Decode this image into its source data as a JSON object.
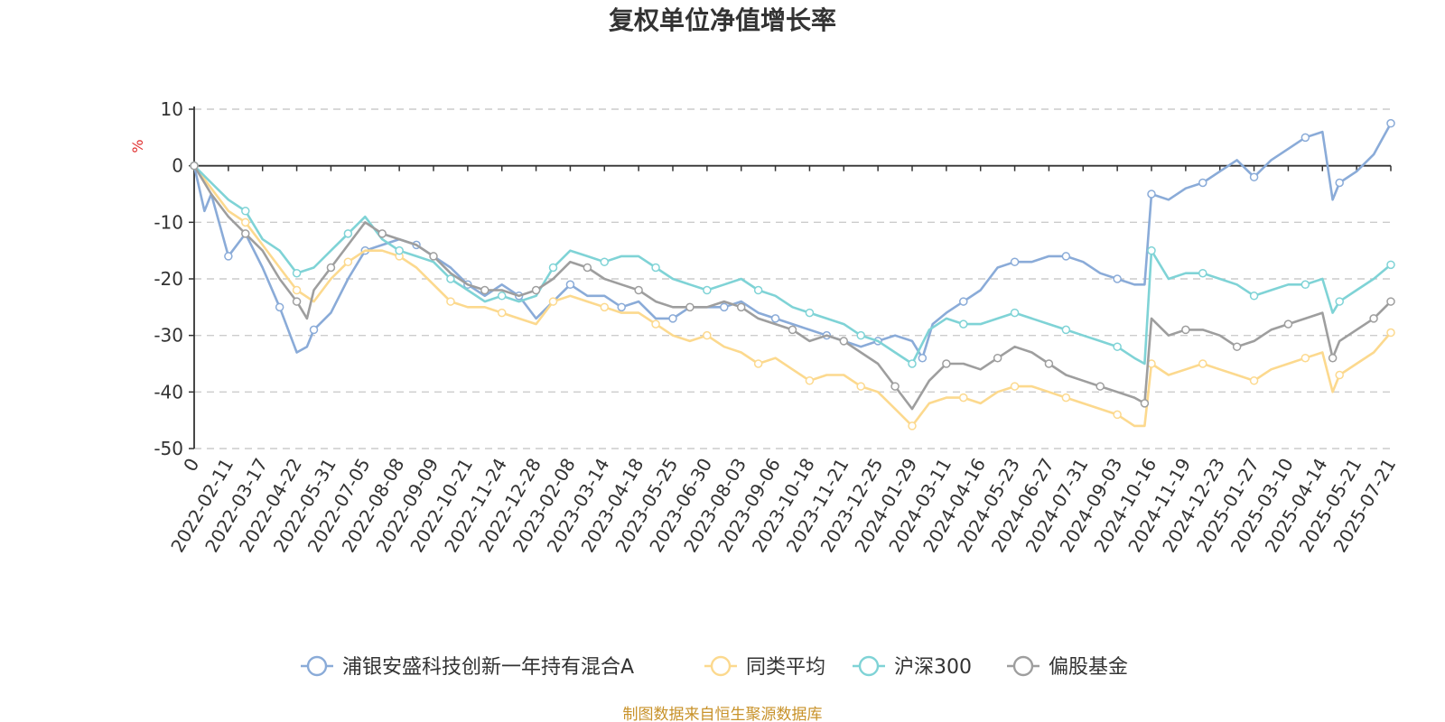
{
  "colors": {
    "text": "#333333",
    "grid": "#cccccc",
    "unit": "#e03030",
    "source": "#c8922a"
  },
  "chart_data": {
    "type": "line",
    "title": "复权单位净值增长率",
    "ylabel": "%",
    "ylim": [
      -50,
      10
    ],
    "yticks": [
      10,
      0,
      -10,
      -20,
      -30,
      -40,
      -50
    ],
    "grid": true,
    "legend_position": "bottom",
    "xticks": [
      "0",
      "2022-02-11",
      "2022-03-17",
      "2022-04-22",
      "2022-05-31",
      "2022-07-05",
      "2022-08-08",
      "2022-09-09",
      "2022-10-21",
      "2022-11-24",
      "2022-12-28",
      "2023-02-08",
      "2023-03-14",
      "2023-04-18",
      "2023-05-25",
      "2023-06-30",
      "2023-08-03",
      "2023-09-06",
      "2023-10-18",
      "2023-11-21",
      "2023-12-25",
      "2024-01-29",
      "2024-03-11",
      "2024-04-16",
      "2024-05-23",
      "2024-06-27",
      "2024-07-31",
      "2024-09-03",
      "2024-10-16",
      "2024-11-19",
      "2024-12-23",
      "2025-01-27",
      "2025-03-10",
      "2025-04-14",
      "2025-05-21",
      "2025-07-21"
    ],
    "x_positions": [
      0,
      1,
      2,
      3,
      4,
      5,
      6,
      7,
      8,
      9,
      10,
      11,
      12,
      13,
      14,
      15,
      16,
      17,
      18,
      19,
      20,
      21,
      22,
      23,
      24,
      25,
      26,
      27,
      28,
      29,
      30,
      31,
      32,
      33,
      34,
      35
    ],
    "series": [
      {
        "name": "浦银安盛科技创新一年持有混合A",
        "color": "#8aabd8",
        "x": [
          0,
          0.3,
          0.5,
          1,
          1.5,
          2,
          2.5,
          3,
          3.3,
          3.5,
          4,
          4.5,
          5,
          5.5,
          6,
          6.5,
          7,
          7.5,
          8,
          8.5,
          9,
          9.5,
          10,
          10.5,
          11,
          11.5,
          12,
          12.5,
          13,
          13.5,
          14,
          14.5,
          15,
          15.5,
          16,
          16.5,
          17,
          17.5,
          18,
          18.5,
          19,
          19.5,
          20,
          20.5,
          21,
          21.3,
          21.6,
          22,
          22.5,
          23,
          23.5,
          24,
          24.5,
          25,
          25.5,
          26,
          26.5,
          27,
          27.5,
          27.8,
          28,
          28.5,
          29,
          29.5,
          30,
          30.5,
          31,
          31.5,
          32,
          32.5,
          33,
          33.3,
          33.5,
          34,
          34.5,
          35
        ],
        "y": [
          0,
          -8,
          -5,
          -16,
          -12,
          -18,
          -25,
          -33,
          -32,
          -29,
          -26,
          -20,
          -15,
          -14,
          -13,
          -14,
          -16,
          -18,
          -21,
          -23,
          -21,
          -23,
          -27,
          -24,
          -21,
          -23,
          -23,
          -25,
          -24,
          -27,
          -27,
          -25,
          -25,
          -25,
          -24,
          -26,
          -27,
          -28,
          -29,
          -30,
          -31,
          -32,
          -31,
          -30,
          -31,
          -34,
          -28,
          -26,
          -24,
          -22,
          -18,
          -17,
          -17,
          -16,
          -16,
          -17,
          -19,
          -20,
          -21,
          -21,
          -5,
          -6,
          -4,
          -3,
          -1,
          1,
          -2,
          1,
          3,
          5,
          6,
          -6,
          -3,
          -1,
          2,
          7.5
        ]
      },
      {
        "name": "同类平均",
        "color": "#fcd98e",
        "x": [
          0,
          0.5,
          1,
          1.5,
          2,
          2.5,
          3,
          3.5,
          4,
          4.5,
          5,
          5.5,
          6,
          6.5,
          7,
          7.5,
          8,
          8.5,
          9,
          9.5,
          10,
          10.5,
          11,
          11.5,
          12,
          12.5,
          13,
          13.5,
          14,
          14.5,
          15,
          15.5,
          16,
          16.5,
          17,
          17.5,
          18,
          18.5,
          19,
          19.5,
          20,
          20.5,
          21,
          21.5,
          22,
          22.5,
          23,
          23.5,
          24,
          24.5,
          25,
          25.5,
          26,
          26.5,
          27,
          27.5,
          27.8,
          28,
          28.5,
          29,
          29.5,
          30,
          30.5,
          31,
          31.5,
          32,
          32.5,
          33,
          33.3,
          33.5,
          34,
          34.5,
          35
        ],
        "y": [
          0,
          -4,
          -8,
          -10,
          -14,
          -18,
          -22,
          -24,
          -20,
          -17,
          -15,
          -15,
          -16,
          -18,
          -21,
          -24,
          -25,
          -25,
          -26,
          -27,
          -28,
          -24,
          -23,
          -24,
          -25,
          -26,
          -26,
          -28,
          -30,
          -31,
          -30,
          -32,
          -33,
          -35,
          -34,
          -36,
          -38,
          -37,
          -37,
          -39,
          -40,
          -43,
          -46,
          -42,
          -41,
          -41,
          -42,
          -40,
          -39,
          -39,
          -40,
          -41,
          -42,
          -43,
          -44,
          -46,
          -46,
          -35,
          -37,
          -36,
          -35,
          -36,
          -37,
          -38,
          -36,
          -35,
          -34,
          -33,
          -40,
          -37,
          -35,
          -33,
          -29.5
        ]
      },
      {
        "name": "沪深300",
        "color": "#7fd3d6",
        "x": [
          0,
          0.5,
          1,
          1.5,
          2,
          2.5,
          3,
          3.5,
          4,
          4.5,
          5,
          5.5,
          6,
          6.5,
          7,
          7.5,
          8,
          8.5,
          9,
          9.5,
          10,
          10.5,
          11,
          11.5,
          12,
          12.5,
          13,
          13.5,
          14,
          14.5,
          15,
          15.5,
          16,
          16.5,
          17,
          17.5,
          18,
          18.5,
          19,
          19.5,
          20,
          20.5,
          21,
          21.5,
          22,
          22.5,
          23,
          23.5,
          24,
          24.5,
          25,
          25.5,
          26,
          26.5,
          27,
          27.5,
          27.8,
          28,
          28.5,
          29,
          29.5,
          30,
          30.5,
          31,
          31.5,
          32,
          32.5,
          33,
          33.3,
          33.5,
          34,
          34.5,
          35
        ],
        "y": [
          0,
          -3,
          -6,
          -8,
          -13,
          -15,
          -19,
          -18,
          -15,
          -12,
          -9,
          -13,
          -15,
          -16,
          -17,
          -20,
          -22,
          -24,
          -23,
          -24,
          -23,
          -18,
          -15,
          -16,
          -17,
          -16,
          -16,
          -18,
          -20,
          -21,
          -22,
          -21,
          -20,
          -22,
          -23,
          -25,
          -26,
          -27,
          -28,
          -30,
          -31,
          -33,
          -35,
          -29,
          -27,
          -28,
          -28,
          -27,
          -26,
          -27,
          -28,
          -29,
          -30,
          -31,
          -32,
          -34,
          -35,
          -15,
          -20,
          -19,
          -19,
          -20,
          -21,
          -23,
          -22,
          -21,
          -21,
          -20,
          -26,
          -24,
          -22,
          -20,
          -17.5
        ]
      },
      {
        "name": "偏股基金",
        "color": "#9e9e9e",
        "x": [
          0,
          0.5,
          1,
          1.5,
          2,
          2.5,
          3,
          3.3,
          3.5,
          4,
          4.5,
          5,
          5.5,
          6,
          6.5,
          7,
          7.5,
          8,
          8.5,
          9,
          9.5,
          10,
          10.5,
          11,
          11.5,
          12,
          12.5,
          13,
          13.5,
          14,
          14.5,
          15,
          15.5,
          16,
          16.5,
          17,
          17.5,
          18,
          18.5,
          19,
          19.5,
          20,
          20.5,
          21,
          21.5,
          22,
          22.5,
          23,
          23.5,
          24,
          24.5,
          25,
          25.5,
          26,
          26.5,
          27,
          27.5,
          27.8,
          28,
          28.5,
          29,
          29.5,
          30,
          30.5,
          31,
          31.5,
          32,
          32.5,
          33,
          33.3,
          33.5,
          34,
          34.5,
          35
        ],
        "y": [
          0,
          -5,
          -9,
          -12,
          -15,
          -20,
          -24,
          -27,
          -22,
          -18,
          -14,
          -10,
          -12,
          -13,
          -14,
          -16,
          -19,
          -21,
          -22,
          -22,
          -23,
          -22,
          -20,
          -17,
          -18,
          -20,
          -21,
          -22,
          -24,
          -25,
          -25,
          -25,
          -24,
          -25,
          -27,
          -28,
          -29,
          -31,
          -30,
          -31,
          -33,
          -35,
          -39,
          -43,
          -38,
          -35,
          -35,
          -36,
          -34,
          -32,
          -33,
          -35,
          -37,
          -38,
          -39,
          -40,
          -41,
          -42,
          -27,
          -30,
          -29,
          -29,
          -30,
          -32,
          -31,
          -29,
          -28,
          -27,
          -26,
          -34,
          -31,
          -29,
          -27,
          -24
        ]
      }
    ]
  },
  "source_note": "制图数据来自恒生聚源数据库"
}
